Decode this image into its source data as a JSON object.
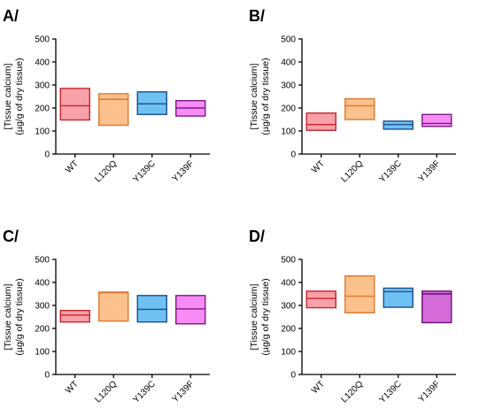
{
  "chart_data": [
    {
      "type": "box",
      "panel": "A/",
      "ylabel": [
        "[Tissue calcium]",
        "(µg/g of dry tissue)"
      ],
      "ylim": [
        0,
        500
      ],
      "yticks": [
        "0",
        "100",
        "200",
        "300",
        "400",
        "500"
      ],
      "categories": [
        "WT",
        "L120Q",
        "Y139C",
        "Y139F"
      ],
      "boxes": [
        {
          "category": "WT",
          "min": 148,
          "median": 210,
          "max": 285,
          "fill": "#f7a1a8",
          "stroke": "#c8242f"
        },
        {
          "category": "L120Q",
          "min": 125,
          "median": 238,
          "max": 262,
          "fill": "#fcc18d",
          "stroke": "#e0772b"
        },
        {
          "category": "Y139C",
          "min": 172,
          "median": 218,
          "max": 270,
          "fill": "#6fc1f3",
          "stroke": "#1e4f8c"
        },
        {
          "category": "Y139F",
          "min": 165,
          "median": 200,
          "max": 232,
          "fill": "#f88cf5",
          "stroke": "#7a1a8a"
        }
      ]
    },
    {
      "type": "box",
      "panel": "B/",
      "ylabel": [
        "[Tissue calcium]",
        "(µg/g of dry tissue)"
      ],
      "ylim": [
        0,
        500
      ],
      "yticks": [
        "0",
        "100",
        "200",
        "300",
        "400",
        "500"
      ],
      "categories": [
        "WT",
        "L120Q",
        "Y139C",
        "Y139F"
      ],
      "boxes": [
        {
          "category": "WT",
          "min": 103,
          "median": 128,
          "max": 178,
          "fill": "#f7a1a8",
          "stroke": "#c8242f"
        },
        {
          "category": "L120Q",
          "min": 150,
          "median": 210,
          "max": 240,
          "fill": "#fcc18d",
          "stroke": "#e0772b"
        },
        {
          "category": "Y139C",
          "min": 108,
          "median": 128,
          "max": 143,
          "fill": "#6fc1f3",
          "stroke": "#1e4f8c"
        },
        {
          "category": "Y139F",
          "min": 120,
          "median": 133,
          "max": 172,
          "fill": "#f88cf5",
          "stroke": "#7a1a8a"
        }
      ]
    },
    {
      "type": "box",
      "panel": "C/",
      "ylabel": [
        "[Tissue calcium]",
        "(µg/g of dry tissue)"
      ],
      "ylim": [
        0,
        500
      ],
      "yticks": [
        "0",
        "100",
        "200",
        "300",
        "400",
        "500"
      ],
      "categories": [
        "WT",
        "L120Q",
        "Y139C",
        "Y139F"
      ],
      "boxes": [
        {
          "category": "WT",
          "min": 228,
          "median": 258,
          "max": 278,
          "fill": "#f7a1a8",
          "stroke": "#c8242f"
        },
        {
          "category": "L120Q",
          "min": 232,
          "median": 355,
          "max": 358,
          "fill": "#fcc18d",
          "stroke": "#e0772b"
        },
        {
          "category": "Y139C",
          "min": 228,
          "median": 283,
          "max": 343,
          "fill": "#6fc1f3",
          "stroke": "#1e4f8c"
        },
        {
          "category": "Y139F",
          "min": 220,
          "median": 285,
          "max": 343,
          "fill": "#f88cf5",
          "stroke": "#7a1a8a"
        }
      ]
    },
    {
      "type": "box",
      "panel": "D/",
      "ylabel": [
        "[Tissue calcium]",
        "(µg/g of dry tissue)"
      ],
      "ylim": [
        0,
        500
      ],
      "yticks": [
        "0",
        "100",
        "200",
        "300",
        "400",
        "500"
      ],
      "categories": [
        "WT",
        "L120Q",
        "Y139C",
        "Y139F"
      ],
      "boxes": [
        {
          "category": "WT",
          "min": 290,
          "median": 330,
          "max": 362,
          "fill": "#f7a1a8",
          "stroke": "#c8242f"
        },
        {
          "category": "L120Q",
          "min": 268,
          "median": 340,
          "max": 428,
          "fill": "#fcc18d",
          "stroke": "#e0772b"
        },
        {
          "category": "Y139C",
          "min": 292,
          "median": 360,
          "max": 375,
          "fill": "#6fc1f3",
          "stroke": "#1e4f8c"
        },
        {
          "category": "Y139F",
          "min": 225,
          "median": 350,
          "max": 362,
          "fill": "#d36bd8",
          "stroke": "#6a0f7a"
        }
      ]
    }
  ]
}
